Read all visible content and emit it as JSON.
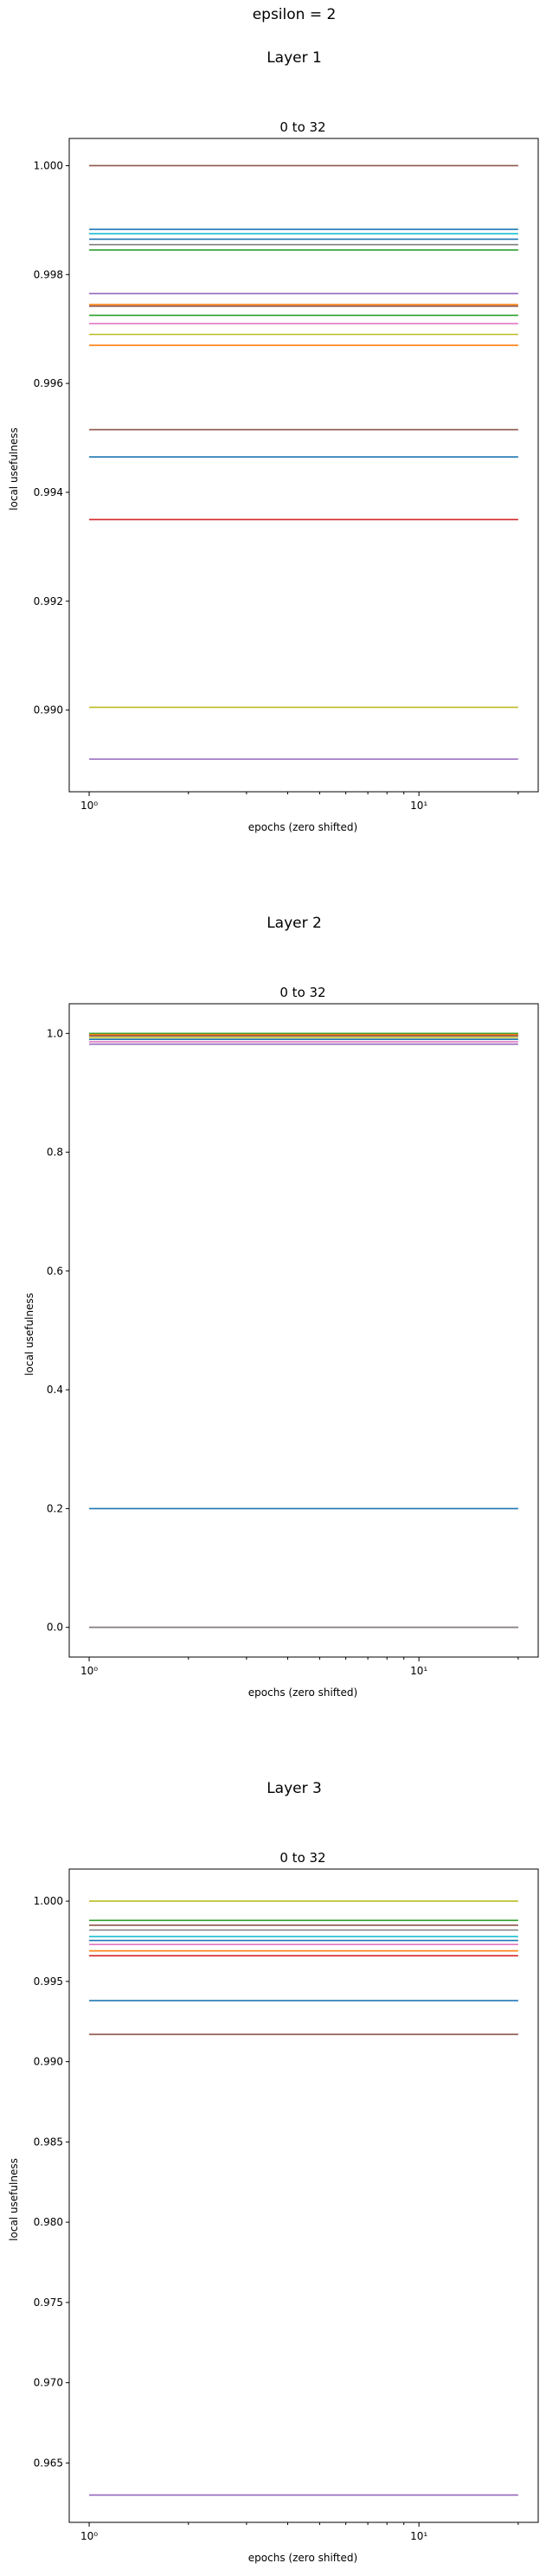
{
  "figure": {
    "title": "epsilon = 2"
  },
  "chart_data": [
    {
      "type": "line",
      "section_title": "Layer 1",
      "title": "0 to 32",
      "xlabel": "epochs (zero shifted)",
      "ylabel": "local usefulness",
      "xscale": "log",
      "xlim": [
        0.87,
        23
      ],
      "ylim": [
        0.9885,
        1.0005
      ],
      "x": [
        1,
        20
      ],
      "xticks": [
        {
          "value": 1,
          "label": "10⁰"
        },
        {
          "value": 10,
          "label": "10¹"
        }
      ],
      "yticks": [
        0.99,
        0.992,
        0.994,
        0.996,
        0.998,
        1.0
      ],
      "ytick_labels": [
        "0.990",
        "0.992",
        "0.994",
        "0.996",
        "0.998",
        "1.000"
      ],
      "grid": false,
      "series": [
        {
          "color": "#8c564b",
          "values": [
            1.0,
            1.0
          ]
        },
        {
          "color": "#1f77b4",
          "values": [
            0.99883,
            0.99883
          ]
        },
        {
          "color": "#17becf",
          "values": [
            0.99875,
            0.99875
          ]
        },
        {
          "color": "#1f77b4",
          "values": [
            0.99865,
            0.99865
          ]
        },
        {
          "color": "#7f7f7f",
          "values": [
            0.99855,
            0.99855
          ]
        },
        {
          "color": "#2ca02c",
          "values": [
            0.99845,
            0.99845
          ]
        },
        {
          "color": "#9467bd",
          "values": [
            0.99765,
            0.99765
          ]
        },
        {
          "color": "#ff7f0e",
          "values": [
            0.99745,
            0.99745
          ]
        },
        {
          "color": "#8c564b",
          "values": [
            0.99742,
            0.99742
          ]
        },
        {
          "color": "#2ca02c",
          "values": [
            0.99725,
            0.99725
          ]
        },
        {
          "color": "#e377c2",
          "values": [
            0.9971,
            0.9971
          ]
        },
        {
          "color": "#bcbd22",
          "values": [
            0.9969,
            0.9969
          ]
        },
        {
          "color": "#ff7f0e",
          "values": [
            0.9967,
            0.9967
          ]
        },
        {
          "color": "#8c564b",
          "values": [
            0.99515,
            0.99515
          ]
        },
        {
          "color": "#1f77b4",
          "values": [
            0.99465,
            0.99465
          ]
        },
        {
          "color": "#d62728",
          "values": [
            0.9935,
            0.9935
          ]
        },
        {
          "color": "#bcbd22",
          "values": [
            0.99005,
            0.99005
          ]
        },
        {
          "color": "#9467bd",
          "values": [
            0.9891,
            0.9891
          ]
        }
      ]
    },
    {
      "type": "line",
      "section_title": "Layer 2",
      "title": "0 to 32",
      "xlabel": "epochs (zero shifted)",
      "ylabel": "local usefulness",
      "xscale": "log",
      "xlim": [
        0.87,
        23
      ],
      "ylim": [
        -0.05,
        1.05
      ],
      "x": [
        1,
        20
      ],
      "xticks": [
        {
          "value": 1,
          "label": "10⁰"
        },
        {
          "value": 10,
          "label": "10¹"
        }
      ],
      "yticks": [
        0.0,
        0.2,
        0.4,
        0.6,
        0.8,
        1.0
      ],
      "ytick_labels": [
        "0.0",
        "0.2",
        "0.4",
        "0.6",
        "0.8",
        "1.0"
      ],
      "grid": false,
      "series": [
        {
          "color": "#2ca02c",
          "values": [
            1.0,
            1.0
          ]
        },
        {
          "color": "#ff7f0e",
          "values": [
            0.998,
            0.998
          ]
        },
        {
          "color": "#8c564b",
          "values": [
            0.996,
            0.996
          ]
        },
        {
          "color": "#bcbd22",
          "values": [
            0.993,
            0.993
          ]
        },
        {
          "color": "#1f77b4",
          "values": [
            0.99,
            0.99
          ]
        },
        {
          "color": "#e377c2",
          "values": [
            0.986,
            0.986
          ]
        },
        {
          "color": "#9467bd",
          "values": [
            0.982,
            0.982
          ]
        },
        {
          "color": "#1f77b4",
          "values": [
            0.2,
            0.2
          ]
        },
        {
          "color": "#d62728",
          "values": [
            0.0,
            0.0
          ]
        },
        {
          "color": "#7f7f7f",
          "values": [
            0.0,
            0.0
          ]
        }
      ]
    },
    {
      "type": "line",
      "section_title": "Layer 3",
      "title": "0 to 32",
      "xlabel": "epochs (zero shifted)",
      "ylabel": "local usefulness",
      "xscale": "log",
      "xlim": [
        0.87,
        23
      ],
      "ylim": [
        0.9613,
        1.002
      ],
      "x": [
        1,
        20
      ],
      "xticks": [
        {
          "value": 1,
          "label": "10⁰"
        },
        {
          "value": 10,
          "label": "10¹"
        }
      ],
      "yticks": [
        0.965,
        0.97,
        0.975,
        0.98,
        0.985,
        0.99,
        0.995,
        1.0
      ],
      "ytick_labels": [
        "0.965",
        "0.970",
        "0.975",
        "0.980",
        "0.985",
        "0.990",
        "0.995",
        "1.000"
      ],
      "grid": false,
      "series": [
        {
          "color": "#bcbd22",
          "values": [
            1.0,
            1.0
          ]
        },
        {
          "color": "#2ca02c",
          "values": [
            0.9988,
            0.9988
          ]
        },
        {
          "color": "#8c564b",
          "values": [
            0.9985,
            0.9985
          ]
        },
        {
          "color": "#7f7f7f",
          "values": [
            0.9982,
            0.9982
          ]
        },
        {
          "color": "#17becf",
          "values": [
            0.9978,
            0.9978
          ]
        },
        {
          "color": "#1f77b4",
          "values": [
            0.99755,
            0.99755
          ]
        },
        {
          "color": "#e377c2",
          "values": [
            0.9973,
            0.9973
          ]
        },
        {
          "color": "#ff7f0e",
          "values": [
            0.9969,
            0.9969
          ]
        },
        {
          "color": "#d62728",
          "values": [
            0.9966,
            0.9966
          ]
        },
        {
          "color": "#1f77b4",
          "values": [
            0.9938,
            0.9938
          ]
        },
        {
          "color": "#8c564b",
          "values": [
            0.9917,
            0.9917
          ]
        },
        {
          "color": "#9467bd",
          "values": [
            0.963,
            0.963
          ]
        }
      ]
    }
  ]
}
